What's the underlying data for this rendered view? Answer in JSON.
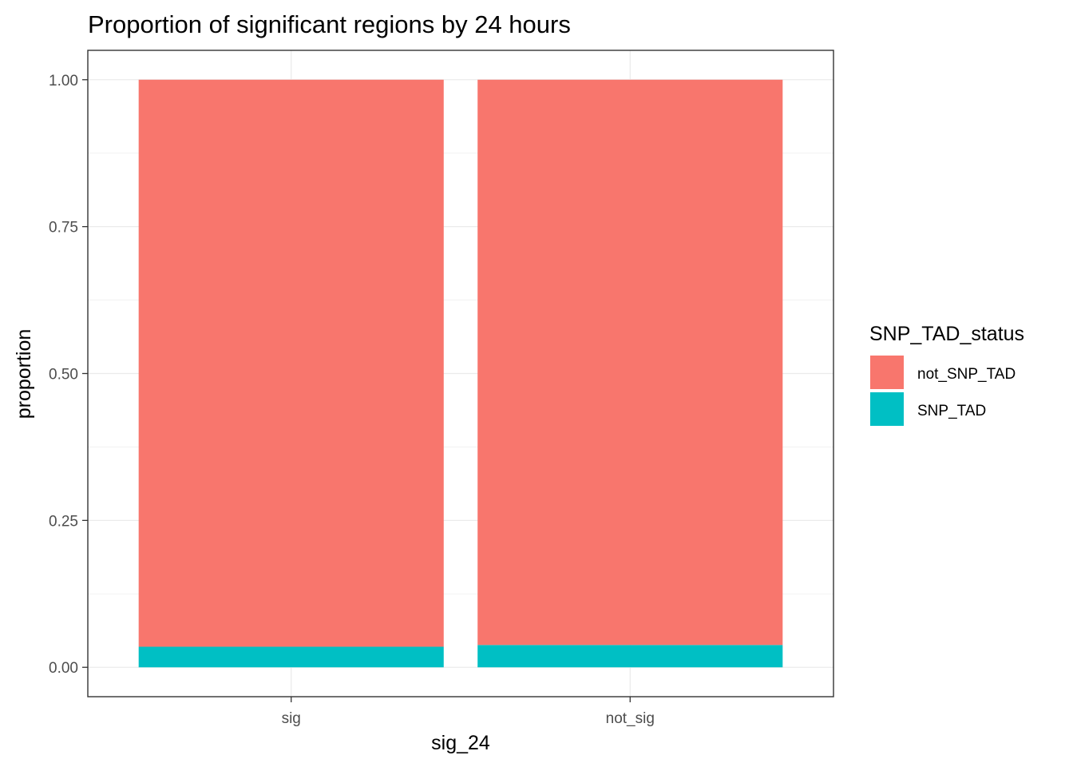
{
  "chart_data": {
    "type": "bar",
    "stacked": true,
    "title": "Proportion of significant regions by 24 hours",
    "xlabel": "sig_24",
    "ylabel": "proportion",
    "categories": [
      "sig",
      "not_sig"
    ],
    "series": [
      {
        "name": "SNP_TAD",
        "color": "#00BFC4",
        "values": [
          0.035,
          0.038
        ]
      },
      {
        "name": "not_SNP_TAD",
        "color": "#F8766D",
        "values": [
          0.965,
          0.962
        ]
      }
    ],
    "ylim": [
      -0.05,
      1.05
    ],
    "yticks": [
      0,
      0.25,
      0.5,
      0.75,
      1
    ],
    "ytick_labels": [
      "0.00",
      "0.25",
      "0.50",
      "0.75",
      "1.00"
    ],
    "grid": true,
    "legend": {
      "title": "SNP_TAD_status",
      "position": "right",
      "entries": [
        {
          "label": "not_SNP_TAD",
          "color": "#F8766D"
        },
        {
          "label": "SNP_TAD",
          "color": "#00BFC4"
        }
      ]
    }
  }
}
